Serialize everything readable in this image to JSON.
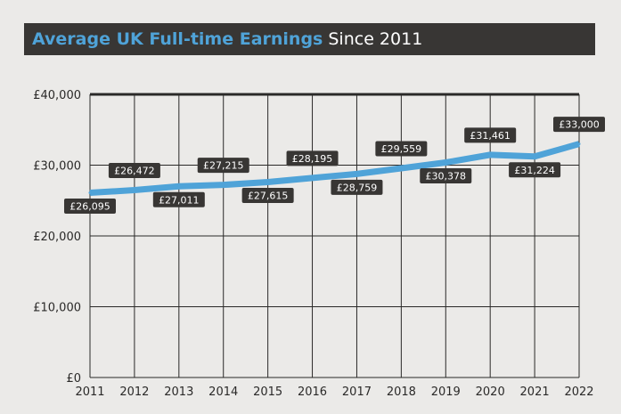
{
  "header": {
    "title_bold": "Average UK Full-time Earnings",
    "title_rest": "Since 2011"
  },
  "colors": {
    "line": "#4fa3d8",
    "label_bg": "#383634",
    "title_bg": "#383634",
    "background": "#ebeae8",
    "grid": "#2a2928"
  },
  "chart_data": {
    "type": "line",
    "x": [
      "2011",
      "2012",
      "2013",
      "2014",
      "2015",
      "2016",
      "2017",
      "2018",
      "2019",
      "2020",
      "2021",
      "2022"
    ],
    "series": [
      {
        "values": [
          26095,
          26472,
          27011,
          27215,
          27615,
          28195,
          28759,
          29559,
          30378,
          31461,
          31224,
          33000
        ]
      }
    ],
    "data_labels": [
      "£26,095",
      "£26,472",
      "£27,011",
      "£27,215",
      "£27,615",
      "£28,195",
      "£28,759",
      "£29,559",
      "£30,378",
      "£31,461",
      "£31,224",
      "£33,000"
    ],
    "label_position": [
      "below",
      "above",
      "below",
      "above",
      "below",
      "above",
      "below",
      "above",
      "below",
      "above",
      "below",
      "above"
    ],
    "yticks": [
      0,
      10000,
      20000,
      30000,
      40000
    ],
    "ytick_labels": [
      "£0",
      "£10,000",
      "£20,000",
      "£30,000",
      "£40,000"
    ],
    "ylim": [
      0,
      40000
    ],
    "grid": true
  }
}
